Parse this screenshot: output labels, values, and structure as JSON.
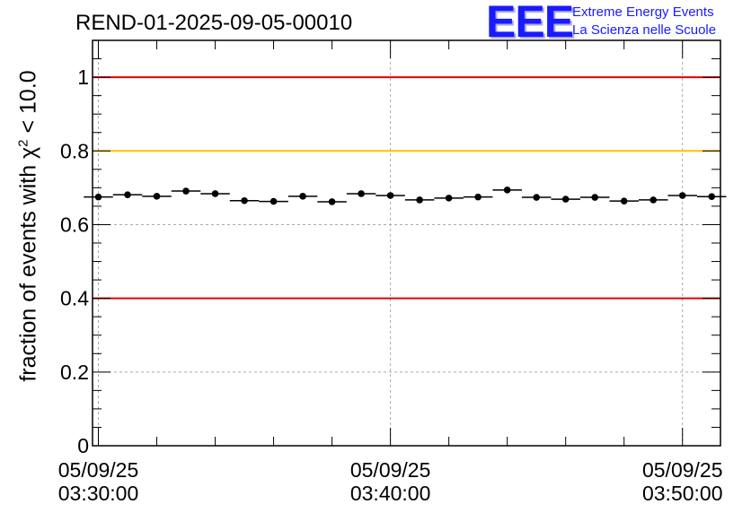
{
  "chart_data": {
    "type": "scatter",
    "title": "REND-01-2025-09-05-00010",
    "ylabel": {
      "prefix": "fraction of events with ",
      "symbol": "χ",
      "superscript": "2",
      "suffix": " < 10.0"
    },
    "ylim": [
      0,
      1.1
    ],
    "yticks": [
      0,
      0.2,
      0.4,
      0.6,
      0.8,
      1
    ],
    "ytick_labels": [
      "0",
      "0.2",
      "0.4",
      "0.6",
      "0.8",
      "1"
    ],
    "xlim_minutes": [
      -0.2,
      21.3
    ],
    "xticks": [
      {
        "minute": 0,
        "date": "05/09/25",
        "time": "03:30:00"
      },
      {
        "minute": 10,
        "date": "05/09/25",
        "time": "03:40:00"
      },
      {
        "minute": 20,
        "date": "05/09/25",
        "time": "03:50:00"
      }
    ],
    "grid": true,
    "reference_lines": [
      {
        "y": 1.0,
        "color": "#e00000"
      },
      {
        "y": 0.8,
        "color": "#ffc000"
      },
      {
        "y": 0.4,
        "color": "#e00000"
      }
    ],
    "series": [
      {
        "x_minutes": [
          0,
          1,
          2,
          3,
          4,
          5,
          6,
          7,
          8,
          9,
          10,
          11,
          12,
          13,
          14,
          15,
          16,
          17,
          18,
          19,
          20,
          21
        ],
        "values": [
          0.675,
          0.681,
          0.677,
          0.691,
          0.684,
          0.665,
          0.663,
          0.677,
          0.662,
          0.684,
          0.679,
          0.667,
          0.672,
          0.675,
          0.694,
          0.674,
          0.669,
          0.674,
          0.664,
          0.667,
          0.679,
          0.676
        ],
        "color": "#000000"
      }
    ]
  },
  "logo": {
    "mark": "EEE",
    "line1": "Extreme Energy Events",
    "line2": "La Scienza nelle Scuole",
    "color": "#1a1aff"
  }
}
